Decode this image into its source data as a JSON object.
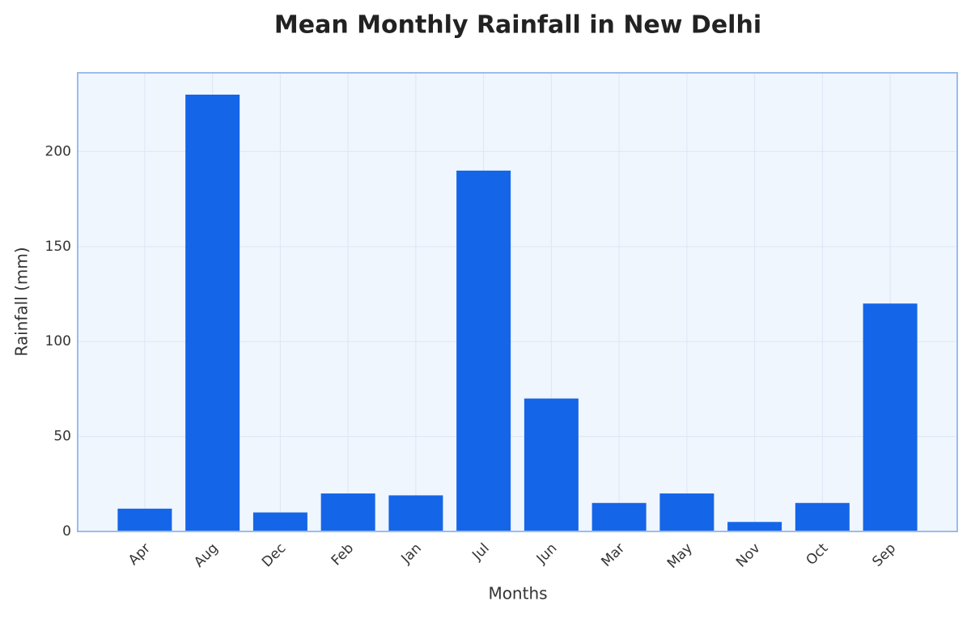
{
  "chart_data": {
    "type": "bar",
    "title": "Mean Monthly Rainfall in New Delhi",
    "xlabel": "Months",
    "ylabel": "Rainfall (mm)",
    "categories": [
      "Apr",
      "Aug",
      "Dec",
      "Feb",
      "Jan",
      "Jul",
      "Jun",
      "Mar",
      "May",
      "Nov",
      "Oct",
      "Sep"
    ],
    "values": [
      12,
      230,
      10,
      20,
      19,
      190,
      70,
      15,
      20,
      5,
      15,
      120
    ],
    "color": "#1565e8",
    "ylim": [
      0,
      241.5
    ],
    "yticks": [
      0,
      50,
      100,
      150,
      200
    ],
    "grid": true
  }
}
